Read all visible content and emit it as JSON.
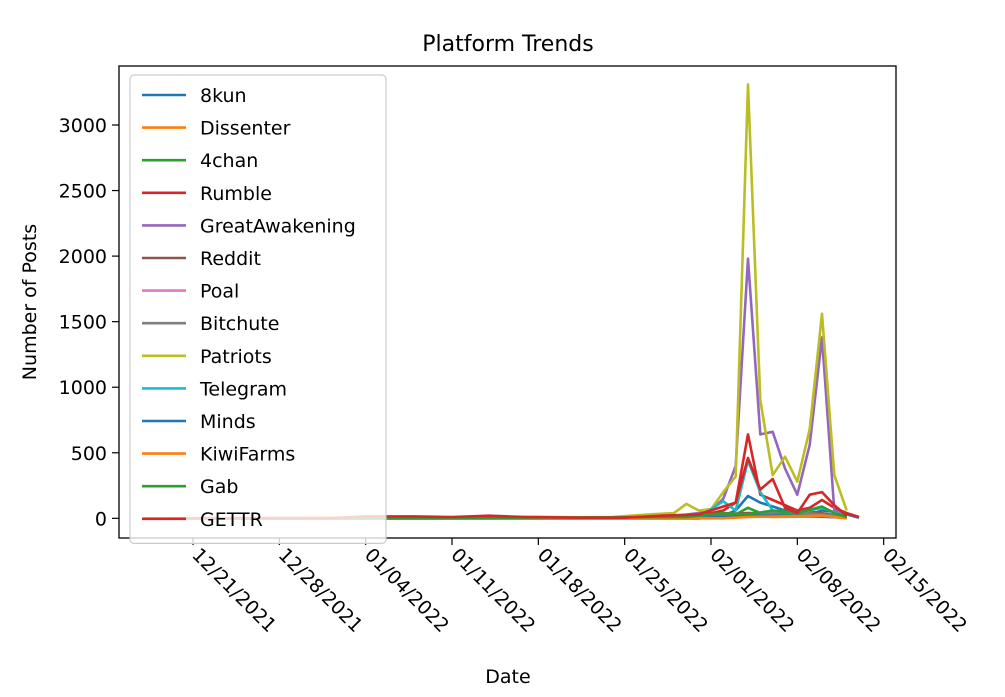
{
  "chart_data": {
    "type": "line",
    "title": "Platform Trends",
    "xlabel": "Date",
    "ylabel": "Number of Posts",
    "grid": false,
    "legend_position": "top-left",
    "x_range": [
      "2021-12-15",
      "2022-02-16"
    ],
    "ylim": [
      -150,
      3450
    ],
    "y_ticks": [
      0,
      500,
      1000,
      1500,
      2000,
      2500,
      3000
    ],
    "x_ticks": [
      "2021-12-21",
      "2021-12-28",
      "2022-01-04",
      "2022-01-11",
      "2022-01-18",
      "2022-01-25",
      "2022-02-01",
      "2022-02-08",
      "2022-02-15"
    ],
    "x_tick_labels": [
      "12/21/2021",
      "12/28/2021",
      "01/04/2022",
      "01/11/2022",
      "01/18/2022",
      "01/25/2022",
      "02/01/2022",
      "02/08/2022",
      "02/15/2022"
    ],
    "series": [
      {
        "name": "8kun",
        "color": "#1f77b4",
        "points": [
          [
            "2021-12-17",
            0
          ],
          [
            "2022-01-04",
            0
          ],
          [
            "2022-01-24",
            0
          ],
          [
            "2022-01-31",
            5
          ],
          [
            "2022-02-02",
            20
          ],
          [
            "2022-02-03",
            60
          ],
          [
            "2022-02-04",
            170
          ],
          [
            "2022-02-05",
            120
          ],
          [
            "2022-02-06",
            90
          ],
          [
            "2022-02-07",
            60
          ],
          [
            "2022-02-08",
            40
          ],
          [
            "2022-02-09",
            30
          ],
          [
            "2022-02-10",
            60
          ],
          [
            "2022-02-11",
            50
          ],
          [
            "2022-02-12",
            30
          ],
          [
            "2022-02-13",
            5
          ]
        ]
      },
      {
        "name": "Dissenter",
        "color": "#ff7f0e",
        "points": [
          [
            "2021-12-17",
            0
          ],
          [
            "2022-01-15",
            0
          ],
          [
            "2022-01-31",
            0
          ],
          [
            "2022-02-03",
            10
          ],
          [
            "2022-02-04",
            20
          ],
          [
            "2022-02-06",
            10
          ],
          [
            "2022-02-10",
            15
          ],
          [
            "2022-02-12",
            5
          ]
        ]
      },
      {
        "name": "4chan",
        "color": "#2ca02c",
        "points": [
          [
            "2021-12-17",
            0
          ],
          [
            "2022-01-20",
            0
          ],
          [
            "2022-02-01",
            5
          ],
          [
            "2022-02-03",
            30
          ],
          [
            "2022-02-04",
            80
          ],
          [
            "2022-02-05",
            40
          ],
          [
            "2022-02-07",
            30
          ],
          [
            "2022-02-08",
            20
          ],
          [
            "2022-02-10",
            30
          ],
          [
            "2022-02-11",
            20
          ],
          [
            "2022-02-12",
            10
          ]
        ]
      },
      {
        "name": "Rumble",
        "color": "#d62728",
        "points": [
          [
            "2021-12-17",
            0
          ],
          [
            "2022-01-04",
            5
          ],
          [
            "2022-01-10",
            5
          ],
          [
            "2022-01-18",
            10
          ],
          [
            "2022-01-25",
            5
          ],
          [
            "2022-01-29",
            20
          ],
          [
            "2022-01-31",
            30
          ],
          [
            "2022-02-01",
            40
          ],
          [
            "2022-02-02",
            60
          ],
          [
            "2022-02-03",
            120
          ],
          [
            "2022-02-04",
            640
          ],
          [
            "2022-02-05",
            180
          ],
          [
            "2022-02-06",
            140
          ],
          [
            "2022-02-07",
            100
          ],
          [
            "2022-02-08",
            60
          ],
          [
            "2022-02-09",
            80
          ],
          [
            "2022-02-10",
            140
          ],
          [
            "2022-02-11",
            80
          ],
          [
            "2022-02-12",
            40
          ],
          [
            "2022-02-13",
            10
          ]
        ]
      },
      {
        "name": "GreatAwakening",
        "color": "#9467bd",
        "points": [
          [
            "2021-12-17",
            0
          ],
          [
            "2022-01-20",
            0
          ],
          [
            "2022-01-28",
            5
          ],
          [
            "2022-01-31",
            40
          ],
          [
            "2022-02-01",
            60
          ],
          [
            "2022-02-02",
            150
          ],
          [
            "2022-02-03",
            400
          ],
          [
            "2022-02-04",
            1980
          ],
          [
            "2022-02-05",
            640
          ],
          [
            "2022-02-06",
            660
          ],
          [
            "2022-02-07",
            380
          ],
          [
            "2022-02-08",
            180
          ],
          [
            "2022-02-09",
            560
          ],
          [
            "2022-02-10",
            1380
          ],
          [
            "2022-02-11",
            60
          ],
          [
            "2022-02-12",
            20
          ]
        ]
      },
      {
        "name": "Reddit",
        "color": "#8c564b",
        "points": [
          [
            "2021-12-17",
            0
          ],
          [
            "2022-01-04",
            0
          ],
          [
            "2022-01-25",
            0
          ],
          [
            "2022-02-04",
            40
          ],
          [
            "2022-02-06",
            40
          ],
          [
            "2022-02-08",
            60
          ],
          [
            "2022-02-10",
            40
          ],
          [
            "2022-02-12",
            10
          ]
        ]
      },
      {
        "name": "Poal",
        "color": "#e377c2",
        "points": [
          [
            "2021-12-17",
            0
          ],
          [
            "2022-01-04",
            0
          ],
          [
            "2022-01-31",
            0
          ],
          [
            "2022-02-04",
            20
          ],
          [
            "2022-02-08",
            20
          ],
          [
            "2022-02-12",
            5
          ]
        ]
      },
      {
        "name": "Bitchute",
        "color": "#7f7f7f",
        "points": [
          [
            "2021-12-17",
            0
          ],
          [
            "2022-01-04",
            0
          ],
          [
            "2022-01-31",
            0
          ],
          [
            "2022-02-04",
            30
          ],
          [
            "2022-02-07",
            50
          ],
          [
            "2022-02-10",
            30
          ],
          [
            "2022-02-12",
            10
          ]
        ]
      },
      {
        "name": "Patriots",
        "color": "#bcbd22",
        "points": [
          [
            "2021-12-17",
            0
          ],
          [
            "2022-01-15",
            5
          ],
          [
            "2022-01-24",
            10
          ],
          [
            "2022-01-27",
            30
          ],
          [
            "2022-01-29",
            40
          ],
          [
            "2022-01-30",
            110
          ],
          [
            "2022-01-31",
            60
          ],
          [
            "2022-02-01",
            70
          ],
          [
            "2022-02-02",
            200
          ],
          [
            "2022-02-03",
            320
          ],
          [
            "2022-02-04",
            3310
          ],
          [
            "2022-02-05",
            900
          ],
          [
            "2022-02-06",
            330
          ],
          [
            "2022-02-07",
            470
          ],
          [
            "2022-02-08",
            280
          ],
          [
            "2022-02-09",
            680
          ],
          [
            "2022-02-10",
            1560
          ],
          [
            "2022-02-11",
            330
          ],
          [
            "2022-02-12",
            60
          ]
        ]
      },
      {
        "name": "Telegram",
        "color": "#17becf",
        "points": [
          [
            "2021-12-17",
            0
          ],
          [
            "2022-01-20",
            0
          ],
          [
            "2022-01-31",
            10
          ],
          [
            "2022-02-02",
            130
          ],
          [
            "2022-02-03",
            60
          ],
          [
            "2022-02-04",
            440
          ],
          [
            "2022-02-05",
            200
          ],
          [
            "2022-02-06",
            60
          ],
          [
            "2022-02-08",
            40
          ],
          [
            "2022-02-10",
            80
          ],
          [
            "2022-02-12",
            10
          ]
        ]
      },
      {
        "name": "Minds",
        "color": "#1f77b4",
        "points": [
          [
            "2021-12-17",
            0
          ],
          [
            "2022-01-04",
            0
          ],
          [
            "2022-01-31",
            0
          ],
          [
            "2022-02-04",
            20
          ],
          [
            "2022-02-08",
            20
          ],
          [
            "2022-02-12",
            5
          ]
        ]
      },
      {
        "name": "KiwiFarms",
        "color": "#ff7f0e",
        "points": [
          [
            "2021-12-17",
            0
          ],
          [
            "2022-01-04",
            0
          ],
          [
            "2022-02-02",
            0
          ],
          [
            "2022-02-04",
            10
          ],
          [
            "2022-02-10",
            20
          ],
          [
            "2022-02-12",
            0
          ]
        ]
      },
      {
        "name": "Gab",
        "color": "#2ca02c",
        "points": [
          [
            "2021-12-17",
            0
          ],
          [
            "2022-01-04",
            0
          ],
          [
            "2022-01-30",
            10
          ],
          [
            "2022-02-02",
            40
          ],
          [
            "2022-02-04",
            30
          ],
          [
            "2022-02-06",
            60
          ],
          [
            "2022-02-08",
            40
          ],
          [
            "2022-02-10",
            90
          ],
          [
            "2022-02-11",
            40
          ],
          [
            "2022-02-12",
            10
          ]
        ]
      },
      {
        "name": "GETTR",
        "color": "#d62728",
        "points": [
          [
            "2021-12-17",
            0
          ],
          [
            "2022-01-01",
            0
          ],
          [
            "2022-01-04",
            15
          ],
          [
            "2022-01-08",
            15
          ],
          [
            "2022-01-11",
            10
          ],
          [
            "2022-01-14",
            20
          ],
          [
            "2022-01-17",
            10
          ],
          [
            "2022-01-21",
            5
          ],
          [
            "2022-01-25",
            5
          ],
          [
            "2022-01-28",
            20
          ],
          [
            "2022-01-31",
            30
          ],
          [
            "2022-02-02",
            90
          ],
          [
            "2022-02-03",
            120
          ],
          [
            "2022-02-04",
            460
          ],
          [
            "2022-02-05",
            220
          ],
          [
            "2022-02-06",
            300
          ],
          [
            "2022-02-07",
            80
          ],
          [
            "2022-02-08",
            40
          ],
          [
            "2022-02-09",
            180
          ],
          [
            "2022-02-10",
            200
          ],
          [
            "2022-02-11",
            100
          ],
          [
            "2022-02-12",
            20
          ]
        ]
      }
    ]
  }
}
